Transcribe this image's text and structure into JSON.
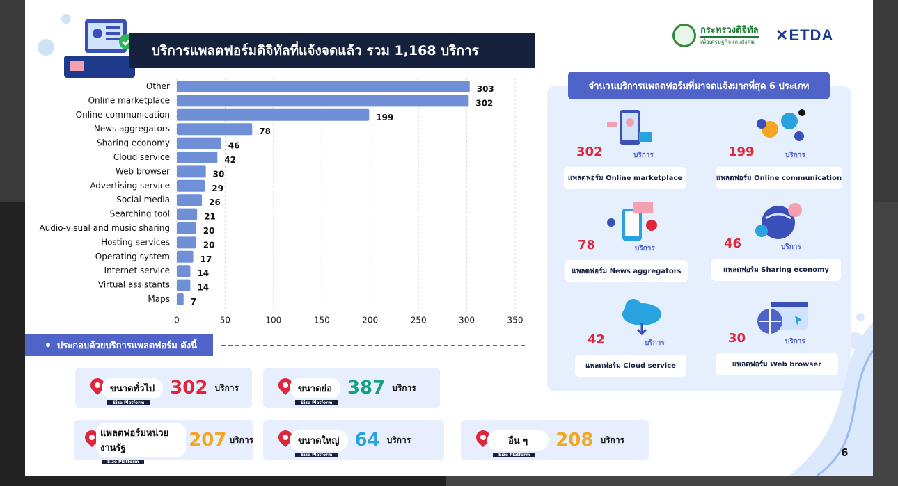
{
  "header": {
    "title": "บริการแพลตฟอร์มดิจิทัลที่แจ้งจดแล้ว รวม  1,168 บริการ",
    "logo_ministry": "กระทรวงดิจิทัล",
    "logo_ministry_sub": "เพื่อเศรษฐกิจและสังคม",
    "logo_etda": "ETDA"
  },
  "chart_data": {
    "type": "bar",
    "orientation": "horizontal",
    "categories": [
      "Other",
      "Online marketplace",
      "Online communication",
      "News aggregators",
      "Sharing economy",
      "Cloud service",
      "Web browser",
      "Advertising service",
      "Social media",
      "Searching tool",
      "Audio-visual and music sharing",
      "Hosting services",
      "Operating system",
      "Internet service",
      "Virtual assistants",
      "Maps"
    ],
    "values": [
      303,
      302,
      199,
      78,
      46,
      42,
      30,
      29,
      26,
      21,
      20,
      20,
      17,
      14,
      14,
      7
    ],
    "value_labels": [
      "303",
      "302",
      "199",
      "78",
      "46",
      "42",
      "30",
      "29",
      "26",
      "21",
      "20",
      "20",
      "17",
      "14",
      "14",
      "7"
    ],
    "xlim": [
      0,
      350
    ],
    "xticks": [
      "0",
      "50",
      "100",
      "150",
      "200",
      "250",
      "300",
      "350"
    ],
    "grid": "vertical dashed",
    "bar_color": "#6f8fd6"
  },
  "section": {
    "label": "ประกอบด้วยบริการแพลตฟอร์ม  ดังนี้"
  },
  "stats": [
    {
      "label": "ขนาดทั่วไป",
      "value": "302",
      "unit": "บริการ",
      "color": "#e0263a",
      "tag": "Size Platform"
    },
    {
      "label": "ขนาดย่อ",
      "value": "387",
      "unit": "บริการ",
      "color": "#14a085",
      "tag": "Size Platform"
    },
    {
      "label": "แพลตฟอร์มหน่วยงานรัฐ",
      "value": "207",
      "unit": "บริการ",
      "color": "#f4a623",
      "tag": "Size Platform"
    },
    {
      "label": "ขนาดใหญ่",
      "value": "64",
      "unit": "บริการ",
      "color": "#29a3e0",
      "tag": "Size Platform"
    },
    {
      "label": "อื่น ๆ",
      "value": "208",
      "unit": "บริการ",
      "color": "#f4a623",
      "tag": "Size Platform"
    }
  ],
  "panel": {
    "title": "จำนวนบริการแพลตฟอร์มที่มาจดแจ้งมากที่สุด 6 ประเภท",
    "tiles": [
      {
        "num": "302",
        "unit": "บริการ",
        "name": "แพลตฟอร์ม Online marketplace",
        "icon": "shopping-icon"
      },
      {
        "num": "199",
        "unit": "บริการ",
        "name": "แพลตฟอร์ม Online communication",
        "icon": "social-icon"
      },
      {
        "num": "78",
        "unit": "บริการ",
        "name": "แพลตฟอร์ม News aggregators",
        "icon": "news-icon"
      },
      {
        "num": "46",
        "unit": "บริการ",
        "name": "แพลตฟอร์ม Sharing economy",
        "icon": "globe-people-icon"
      },
      {
        "num": "42",
        "unit": "บริการ",
        "name": "แพลตฟอร์ม Cloud service",
        "icon": "cloud-icon"
      },
      {
        "num": "30",
        "unit": "บริการ",
        "name": "แพลตฟอร์ม Web browser",
        "icon": "browser-icon"
      }
    ]
  },
  "page_number": "6"
}
